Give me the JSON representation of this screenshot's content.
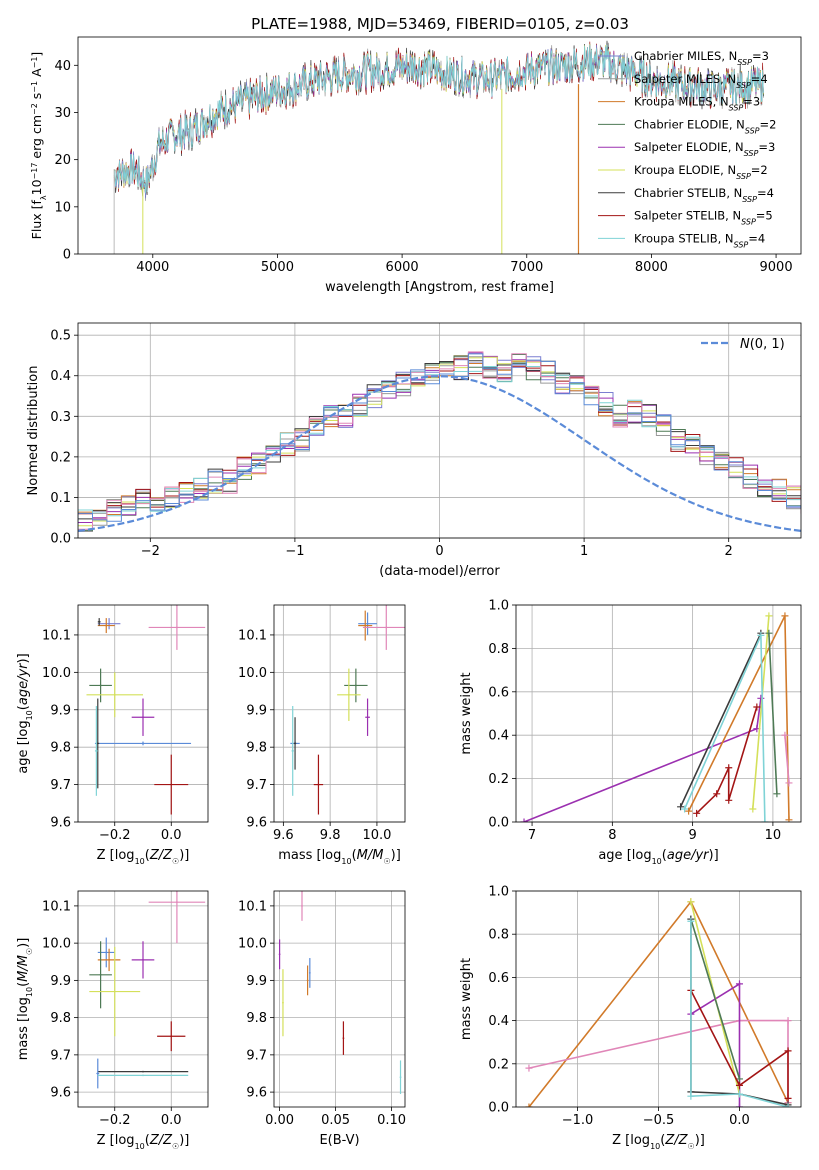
{
  "figure_title": "PLATE=1988, MJD=53469, FIBERID=0105, z=0.03",
  "colors": {
    "Chabrier MILES": "#7b7fd1",
    "Salpeter MILES": "#9a9a9a",
    "Kroupa MILES": "#d17a2a",
    "Chabrier ELODIE": "#4e7a55",
    "Salpeter ELODIE": "#9b30b0",
    "Kroupa ELODIE": "#d4e05a",
    "Chabrier STELIB": "#3b3b3b",
    "Salpeter STELIB": "#a31515",
    "Kroupa STELIB": "#7fd3d6",
    "Pink": "#e086b8",
    "Normal": "#5b8bd8",
    "Grid": "#b0b0b0"
  },
  "chart_data": [
    {
      "id": "spectrum",
      "type": "line",
      "title": "PLATE=1988, MJD=53469, FIBERID=0105, z=0.03",
      "xlabel": "wavelength [Angstrom, rest frame]",
      "ylabel": "Flux [f_λ 10^-17 erg cm^-2 s^-1 A^-1]",
      "xlim": [
        3400,
        9200
      ],
      "ylim": [
        0,
        46
      ],
      "xticks": [
        "4000",
        "5000",
        "6000",
        "7000",
        "8000",
        "9000"
      ],
      "yticks": [
        "0",
        "10",
        "20",
        "30",
        "40"
      ],
      "grid": false,
      "legend_position": "top-right",
      "continuum": [
        [
          3690,
          17
        ],
        [
          3850,
          18
        ],
        [
          3950,
          15
        ],
        [
          4050,
          23
        ],
        [
          4150,
          25
        ],
        [
          4300,
          26
        ],
        [
          4500,
          30
        ],
        [
          4700,
          32
        ],
        [
          4900,
          34
        ],
        [
          5200,
          36
        ],
        [
          5500,
          38
        ],
        [
          5800,
          39
        ],
        [
          6100,
          40
        ],
        [
          6400,
          38
        ],
        [
          6700,
          37
        ],
        [
          7000,
          39
        ],
        [
          7300,
          40
        ],
        [
          7600,
          41
        ],
        [
          8000,
          37
        ],
        [
          8500,
          35
        ],
        [
          8900,
          36
        ]
      ],
      "series": [
        {
          "name": "Chabrier MILES, N_SSP=3"
        },
        {
          "name": "Salpeter MILES, N_SSP=4"
        },
        {
          "name": "Kroupa MILES, N_SSP=3"
        },
        {
          "name": "Chabrier ELODIE, N_SSP=2"
        },
        {
          "name": "Salpeter ELODIE, N_SSP=3"
        },
        {
          "name": "Kroupa ELODIE, N_SSP=2"
        },
        {
          "name": "Chabrier STELIB, N_SSP=4"
        },
        {
          "name": "Salpeter STELIB, N_SSP=5"
        },
        {
          "name": "Kroupa STELIB, N_SSP=4"
        }
      ]
    },
    {
      "id": "residuals",
      "type": "line",
      "xlabel": "(data-model)/error",
      "ylabel": "Normed distribution",
      "xlim": [
        -2.5,
        2.5
      ],
      "ylim": [
        0,
        0.53
      ],
      "xticks": [
        "−2",
        "−1",
        "0",
        "1",
        "2"
      ],
      "yticks": [
        "0.0",
        "0.1",
        "0.2",
        "0.3",
        "0.4",
        "0.5"
      ],
      "grid": true,
      "legend_position": "top-right",
      "legend": "N(0,1)",
      "bin_width": 0.1,
      "histogram_mean": [
        0.015,
        0.02,
        0.025,
        0.03,
        0.035,
        0.045,
        0.05,
        0.07,
        0.08,
        0.09,
        0.095,
        0.1,
        0.11,
        0.12,
        0.14,
        0.14,
        0.17,
        0.18,
        0.21,
        0.23,
        0.24,
        0.27,
        0.3,
        0.3,
        0.33,
        0.35,
        0.37,
        0.38,
        0.4,
        0.41,
        0.42,
        0.42,
        0.43,
        0.42,
        0.41,
        0.43,
        0.42,
        0.41,
        0.38,
        0.37,
        0.35,
        0.33,
        0.3,
        0.31,
        0.3,
        0.28,
        0.24,
        0.23,
        0.2,
        0.19,
        0.17,
        0.15,
        0.13,
        0.12,
        0.1,
        0.09,
        0.08,
        0.07,
        0.06,
        0.05,
        0.04,
        0.035,
        0.03,
        0.025,
        0.02,
        0.02,
        0.015,
        0.015,
        0.01,
        0.01
      ],
      "normal_curve": {
        "mean": 0,
        "sigma": 1
      }
    },
    {
      "id": "age_vs_Z",
      "type": "scatter",
      "xlabel": "Z [log10(Z/Z☉)]",
      "ylabel": "age  [log10(age/yr)]",
      "xlim": [
        -0.33,
        0.13
      ],
      "ylim": [
        9.6,
        10.18
      ],
      "xticks": [
        "−0.2",
        "0.0"
      ],
      "xtick_values": [
        -0.2,
        0.0
      ],
      "yticks": [
        "9.6",
        "9.7",
        "9.8",
        "9.9",
        "10.0",
        "10.1"
      ],
      "ytick_values": [
        9.6,
        9.7,
        9.8,
        9.9,
        10.0,
        10.1
      ],
      "grid": true,
      "points": [
        {
          "color": "Chabrier MILES",
          "x": -0.22,
          "y": 10.13,
          "xerr": 0.04,
          "yerr": 0.015
        },
        {
          "color": "Kroupa MILES",
          "x": -0.23,
          "y": 10.125,
          "xerr": 0.03,
          "yerr": 0.02
        },
        {
          "color": "Chabrier STELIB",
          "x": -0.255,
          "y": 10.135,
          "xerr": 0.005,
          "yerr": 0.01
        },
        {
          "color": "Pink",
          "x": 0.02,
          "y": 10.12,
          "xerr": 0.1,
          "yerr": 0.06
        },
        {
          "color": "Chabrier ELODIE",
          "x": -0.25,
          "y": 9.965,
          "xerr": 0.04,
          "yerr": 0.045
        },
        {
          "color": "Kroupa ELODIE",
          "x": -0.2,
          "y": 9.94,
          "xerr": 0.1,
          "yerr": 0.06
        },
        {
          "color": "Salpeter ELODIE",
          "x": -0.1,
          "y": 9.88,
          "xerr": 0.04,
          "yerr": 0.05
        },
        {
          "color": "Normal",
          "x": -0.1,
          "y": 9.81,
          "xerr": 0.17,
          "yerr": 0.005
        },
        {
          "color": "Chabrier STELIB",
          "x": -0.26,
          "y": 9.81,
          "xerr": 0.005,
          "yerr": 0.12
        },
        {
          "color": "Kroupa STELIB",
          "x": -0.265,
          "y": 9.79,
          "xerr": 0.005,
          "yerr": 0.12
        },
        {
          "color": "Salpeter STELIB",
          "x": 0.0,
          "y": 9.7,
          "xerr": 0.06,
          "yerr": 0.08
        }
      ]
    },
    {
      "id": "age_vs_mass",
      "type": "scatter",
      "xlabel": "mass [log10(M/M☉)]",
      "xlim": [
        9.56,
        10.12
      ],
      "ylim": [
        9.6,
        10.18
      ],
      "xticks": [
        "9.6",
        "9.8",
        "10.0"
      ],
      "xtick_values": [
        9.6,
        9.8,
        10.0
      ],
      "yticks": [
        "9.6",
        "9.7",
        "9.8",
        "9.9",
        "10.0",
        "10.1"
      ],
      "ytick_values": [
        9.6,
        9.7,
        9.8,
        9.9,
        10.0,
        10.1
      ],
      "grid": true,
      "points": [
        {
          "color": "Normal",
          "x": 9.96,
          "y": 10.13,
          "xerr": 0.04,
          "yerr": 0.03
        },
        {
          "color": "Kroupa MILES",
          "x": 9.95,
          "y": 10.125,
          "xerr": 0.03,
          "yerr": 0.04
        },
        {
          "color": "Pink",
          "x": 10.04,
          "y": 10.12,
          "xerr": 0.1,
          "yerr": 0.06
        },
        {
          "color": "Chabrier ELODIE",
          "x": 9.91,
          "y": 9.965,
          "xerr": 0.05,
          "yerr": 0.045
        },
        {
          "color": "Kroupa ELODIE",
          "x": 9.88,
          "y": 9.94,
          "xerr": 0.05,
          "yerr": 0.07
        },
        {
          "color": "Salpeter ELODIE",
          "x": 9.96,
          "y": 9.88,
          "xerr": 0.01,
          "yerr": 0.05
        },
        {
          "color": "Normal",
          "x": 9.65,
          "y": 9.81,
          "xerr": 0.02,
          "yerr": 0.005
        },
        {
          "color": "Chabrier STELIB",
          "x": 9.65,
          "y": 9.81,
          "xerr": 0.005,
          "yerr": 0.07
        },
        {
          "color": "Kroupa STELIB",
          "x": 9.64,
          "y": 9.79,
          "xerr": 0.005,
          "yerr": 0.12
        },
        {
          "color": "Salpeter STELIB",
          "x": 9.75,
          "y": 9.7,
          "xerr": 0.02,
          "yerr": 0.08
        }
      ]
    },
    {
      "id": "weight_vs_age",
      "type": "line",
      "xlabel": "age  [log10(age/yr)]",
      "ylabel": "mass weight",
      "xlim": [
        6.8,
        10.35
      ],
      "ylim": [
        0,
        1.0
      ],
      "xticks": [
        "7",
        "8",
        "9",
        "10"
      ],
      "xtick_values": [
        7,
        8,
        9,
        10
      ],
      "yticks": [
        "0.0",
        "0.2",
        "0.4",
        "0.6",
        "0.8",
        "1.0"
      ],
      "ytick_values": [
        0,
        0.2,
        0.4,
        0.6,
        0.8,
        1.0
      ],
      "grid": true,
      "series": [
        {
          "color": "Salpeter ELODIE",
          "points": [
            [
              6.9,
              0.0
            ],
            [
              9.8,
              0.43
            ],
            [
              9.85,
              0.57
            ]
          ]
        },
        {
          "color": "Kroupa MILES",
          "points": [
            [
              8.95,
              0.05
            ],
            [
              10.15,
              0.95
            ],
            [
              10.2,
              0.01
            ]
          ]
        },
        {
          "color": "Salpeter STELIB",
          "points": [
            [
              9.05,
              0.04
            ],
            [
              9.3,
              0.13
            ],
            [
              9.45,
              0.25
            ],
            [
              9.45,
              0.1
            ],
            [
              9.8,
              0.53
            ]
          ]
        },
        {
          "color": "Kroupa ELODIE",
          "points": [
            [
              9.75,
              0.06
            ],
            [
              9.95,
              0.95
            ]
          ]
        },
        {
          "color": "Chabrier ELODIE",
          "points": [
            [
              9.95,
              0.87
            ],
            [
              10.05,
              0.13
            ]
          ]
        },
        {
          "color": "Pink",
          "points": [
            [
              10.15,
              0.4
            ],
            [
              10.2,
              0.18
            ]
          ]
        },
        {
          "color": "Chabrier STELIB",
          "points": [
            [
              8.85,
              0.07
            ],
            [
              9.85,
              0.87
            ]
          ]
        },
        {
          "color": "Kroupa STELIB",
          "points": [
            [
              8.9,
              0.06
            ],
            [
              9.85,
              0.86
            ],
            [
              9.9,
              0.0
            ]
          ]
        }
      ]
    },
    {
      "id": "mass_vs_Z",
      "type": "scatter",
      "xlabel": "Z [log10(Z/Z☉)]",
      "ylabel": "mass [log10(M/M☉)]",
      "xlim": [
        -0.33,
        0.13
      ],
      "ylim": [
        9.56,
        10.14
      ],
      "xticks": [
        "−0.2",
        "0.0"
      ],
      "xtick_values": [
        -0.2,
        0.0
      ],
      "yticks": [
        "9.6",
        "9.7",
        "9.8",
        "9.9",
        "10.0",
        "10.1"
      ],
      "ytick_values": [
        9.6,
        9.7,
        9.8,
        9.9,
        10.0,
        10.1
      ],
      "grid": true,
      "points": [
        {
          "color": "Pink",
          "x": 0.02,
          "y": 10.11,
          "xerr": 0.1,
          "yerr": 0.11
        },
        {
          "color": "Salpeter ELODIE",
          "x": -0.1,
          "y": 9.955,
          "xerr": 0.04,
          "yerr": 0.05
        },
        {
          "color": "Normal",
          "x": -0.23,
          "y": 9.975,
          "xerr": 0.03,
          "yerr": 0.04
        },
        {
          "color": "Kroupa MILES",
          "x": -0.22,
          "y": 9.955,
          "xerr": 0.04,
          "yerr": 0.03
        },
        {
          "color": "Chabrier ELODIE",
          "x": -0.25,
          "y": 9.915,
          "xerr": 0.04,
          "yerr": 0.09
        },
        {
          "color": "Kroupa ELODIE",
          "x": -0.2,
          "y": 9.87,
          "xerr": 0.09,
          "yerr": 0.12
        },
        {
          "color": "Salpeter STELIB",
          "x": 0.0,
          "y": 9.75,
          "xerr": 0.05,
          "yerr": 0.04
        },
        {
          "color": "Chabrier STELIB",
          "x": -0.1,
          "y": 9.655,
          "xerr": 0.16,
          "yerr": 0.0
        },
        {
          "color": "Normal",
          "x": -0.26,
          "y": 9.65,
          "xerr": 0.005,
          "yerr": 0.04
        },
        {
          "color": "Kroupa STELIB",
          "x": -0.1,
          "y": 9.645,
          "xerr": 0.16,
          "yerr": 0.0
        }
      ]
    },
    {
      "id": "mass_vs_ebv",
      "type": "scatter",
      "xlabel": "E(B-V)",
      "xlim": [
        -0.005,
        0.112
      ],
      "ylim": [
        9.56,
        10.14
      ],
      "xticks": [
        "0.00",
        "0.05",
        "0.10"
      ],
      "xtick_values": [
        0,
        0.05,
        0.1
      ],
      "yticks": [
        "9.6",
        "9.7",
        "9.8",
        "9.9",
        "10.0",
        "10.1"
      ],
      "ytick_values": [
        9.6,
        9.7,
        9.8,
        9.9,
        10.0,
        10.1
      ],
      "grid": true,
      "points": [
        {
          "color": "Pink",
          "x": 0.02,
          "y": 10.1,
          "xerr": 0.0,
          "yerr": 0.04
        },
        {
          "color": "Salpeter ELODIE",
          "x": 0.0,
          "y": 9.97,
          "xerr": 0.0,
          "yerr": 0.04
        },
        {
          "color": "Kroupa MILES",
          "x": 0.025,
          "y": 9.9,
          "xerr": 0.0,
          "yerr": 0.04
        },
        {
          "color": "Normal",
          "x": 0.027,
          "y": 9.92,
          "xerr": 0.0,
          "yerr": 0.04
        },
        {
          "color": "Kroupa ELODIE",
          "x": 0.003,
          "y": 9.84,
          "xerr": 0.0,
          "yerr": 0.09
        },
        {
          "color": "Salpeter STELIB",
          "x": 0.057,
          "y": 9.745,
          "xerr": 0.0,
          "yerr": 0.045
        },
        {
          "color": "Kroupa STELIB",
          "x": 0.108,
          "y": 9.64,
          "xerr": 0.0,
          "yerr": 0.045
        }
      ]
    },
    {
      "id": "weight_vs_Z",
      "type": "line",
      "xlabel": "Z [log10(Z/Z☉)]",
      "ylabel": "mass weight",
      "xlim": [
        -1.38,
        0.38
      ],
      "ylim": [
        0,
        1.0
      ],
      "xticks": [
        "−1.0",
        "−0.5",
        "0.0"
      ],
      "xtick_values": [
        -1.0,
        -0.5,
        0.0
      ],
      "yticks": [
        "0.0",
        "0.2",
        "0.4",
        "0.6",
        "0.8",
        "1.0"
      ],
      "ytick_values": [
        0,
        0.2,
        0.4,
        0.6,
        0.8,
        1.0
      ],
      "grid": true,
      "series": [
        {
          "color": "Kroupa MILES",
          "points": [
            [
              -1.3,
              0.0
            ],
            [
              -0.3,
              0.95
            ],
            [
              0.3,
              0.02
            ]
          ]
        },
        {
          "color": "Pink",
          "points": [
            [
              -1.3,
              0.18
            ],
            [
              0.0,
              0.4
            ],
            [
              0.3,
              0.4
            ],
            [
              0.3,
              0.02
            ]
          ]
        },
        {
          "color": "Salpeter ELODIE",
          "points": [
            [
              -0.3,
              0.43
            ],
            [
              0.0,
              0.57
            ],
            [
              0.0,
              0.0
            ]
          ]
        },
        {
          "color": "Kroupa ELODIE",
          "points": [
            [
              -0.3,
              0.95
            ],
            [
              0.0,
              0.06
            ]
          ]
        },
        {
          "color": "Chabrier ELODIE",
          "points": [
            [
              -0.3,
              0.87
            ],
            [
              0.0,
              0.13
            ]
          ]
        },
        {
          "color": "Salpeter STELIB",
          "points": [
            [
              -0.3,
              0.54
            ],
            [
              0.0,
              0.1
            ],
            [
              0.3,
              0.26
            ],
            [
              0.3,
              0.04
            ]
          ]
        },
        {
          "color": "Chabrier STELIB",
          "points": [
            [
              -0.3,
              0.87
            ],
            [
              -0.3,
              0.07
            ],
            [
              0.0,
              0.06
            ],
            [
              0.3,
              0.01
            ]
          ]
        },
        {
          "color": "Kroupa STELIB",
          "points": [
            [
              -0.3,
              0.86
            ],
            [
              -0.3,
              0.05
            ],
            [
              0.0,
              0.06
            ],
            [
              0.3,
              0.0
            ]
          ]
        }
      ]
    }
  ]
}
